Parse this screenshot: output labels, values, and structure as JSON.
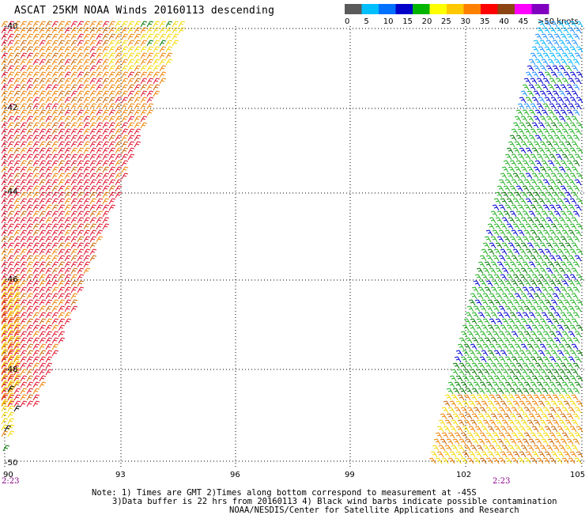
{
  "title": "ASCAT 25KM NOAA Winds 20160113 descending",
  "legend": {
    "tick_labels": [
      "0",
      "5",
      "10",
      "15",
      "20",
      "25",
      "30",
      "35",
      "40",
      "45",
      ">50 knots"
    ],
    "colors": [
      "#5a5a5a",
      "#00bfff",
      "#0070ff",
      "#0000c8",
      "#00b400",
      "#ffff00",
      "#ffc800",
      "#ff8000",
      "#ff0000",
      "#8b4513",
      "#ff00ff",
      "#8000c0"
    ]
  },
  "lat_labels": [
    "-40",
    "-42",
    "-44",
    "-46",
    "-48",
    "-50"
  ],
  "lon_labels": [
    "90",
    "93",
    "96",
    "99",
    "102",
    "105"
  ],
  "time_labels": [
    "2:23",
    "2:23"
  ],
  "notes": {
    "line1": "Note: 1) Times are GMT 2)Times along bottom correspond to measurement at -45S",
    "line2": "3)Data buffer is 22 hrs from 20160113 4) Black wind barbs indicate possible contamination",
    "line3": "NOAA/NESDIS/Center for Satellite Applications and Research"
  },
  "wind_colors": {
    "yellow": "#f5d800",
    "orange": "#f08000",
    "red": "#e0102a",
    "dark_orange": "#c86400",
    "green": "#22b022",
    "dark_green": "#007800",
    "blue": "#0000d0",
    "light_blue": "#1e90ff",
    "cyan": "#00b4ff",
    "black": "#000000"
  }
}
